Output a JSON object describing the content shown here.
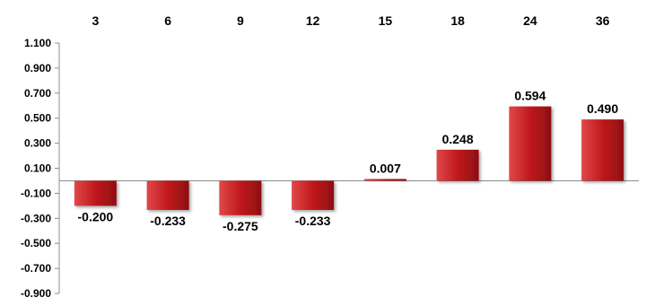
{
  "chart_data": {
    "type": "bar",
    "title": "",
    "xlabel": "",
    "ylabel": "",
    "categories": [
      "3",
      "6",
      "9",
      "12",
      "15",
      "18",
      "24",
      "36"
    ],
    "values": [
      -0.2,
      -0.233,
      -0.275,
      -0.233,
      0.007,
      0.248,
      0.594,
      0.49
    ],
    "data_labels": [
      "-0.200",
      "-0.233",
      "-0.275",
      "-0.233",
      "0.007",
      "0.248",
      "0.594",
      "0.490"
    ],
    "ylim": [
      -0.9,
      1.1
    ],
    "y_ticks": [
      "1.100",
      "0.900",
      "0.700",
      "0.500",
      "0.300",
      "0.100",
      "-0.100",
      "-0.300",
      "-0.500",
      "-0.700",
      "-0.900"
    ],
    "y_tick_values": [
      1.1,
      0.9,
      0.7,
      0.5,
      0.3,
      0.1,
      -0.1,
      -0.3,
      -0.5,
      -0.7,
      -0.9
    ],
    "category_labels_position": "top",
    "grid": false,
    "legend": "none",
    "colors": {
      "bar_fill": "#c0191c",
      "bar_highlight": "#e0484a",
      "bar_shadow": "#8e0f11",
      "axis": "#8c8c8c",
      "text": "#000000"
    }
  }
}
